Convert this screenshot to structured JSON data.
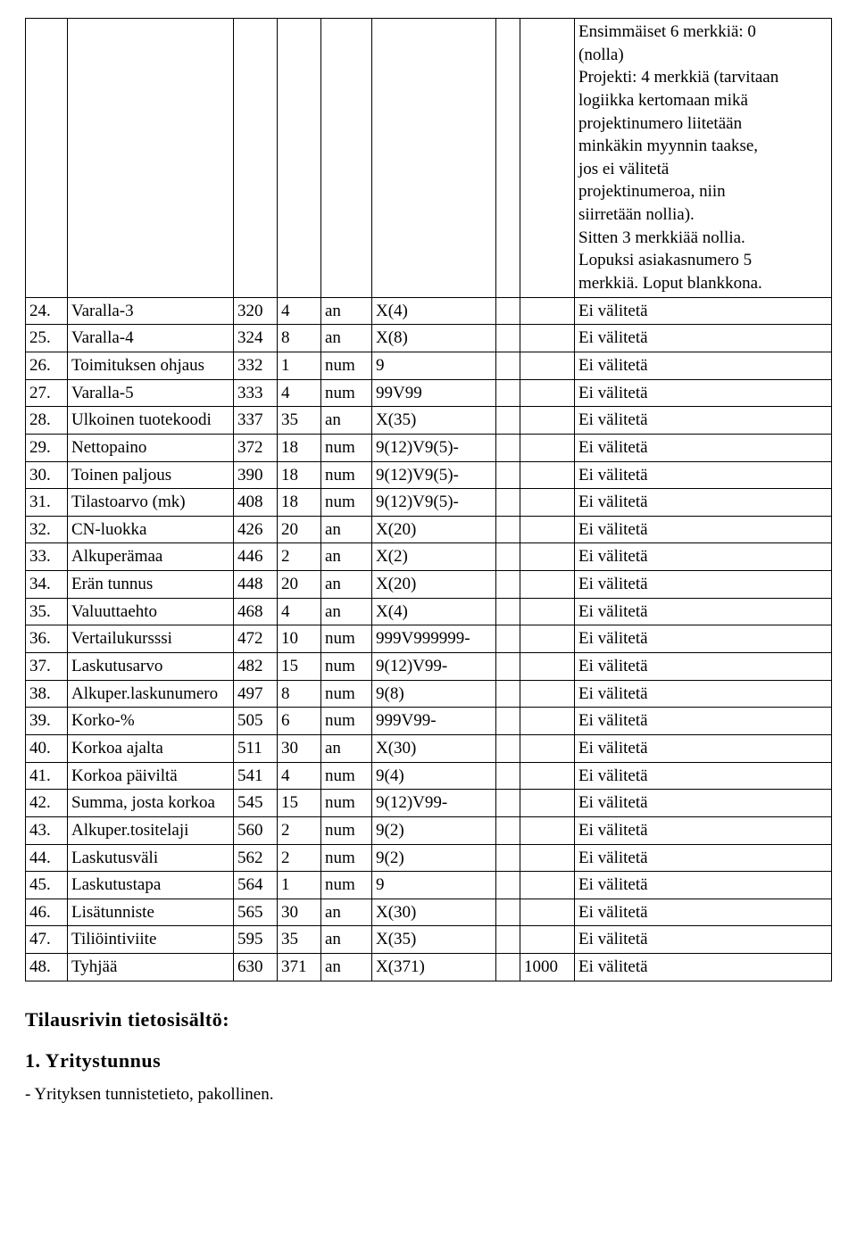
{
  "top_desc": [
    "Ensimmäiset 6 merkkiä: 0",
    "(nolla)",
    "Projekti: 4 merkkiä (tarvitaan",
    "logiikka kertomaan mikä",
    "projektinumero liitetään",
    "minkäkin myynnin taakse,",
    "jos ei välitetä",
    "projektinumeroa, niin",
    "siirretään nollia).",
    "Sitten 3 merkkiää nollia.",
    "Lopuksi asiakasnumero 5",
    "merkkiä. Loput blankkona."
  ],
  "rows": [
    {
      "n": "24.",
      "name": "Varalla-3",
      "pos": "320",
      "len": "4",
      "type": "an",
      "fmt": "X(4)",
      "b1": "",
      "b2": "",
      "desc": "Ei välitetä"
    },
    {
      "n": "25.",
      "name": "Varalla-4",
      "pos": "324",
      "len": "8",
      "type": "an",
      "fmt": "X(8)",
      "b1": "",
      "b2": "",
      "desc": "Ei välitetä"
    },
    {
      "n": "26.",
      "name": "Toimituksen ohjaus",
      "pos": "332",
      "len": "1",
      "type": "num",
      "fmt": "9",
      "b1": "",
      "b2": "",
      "desc": "Ei välitetä"
    },
    {
      "n": "27.",
      "name": "Varalla-5",
      "pos": "333",
      "len": "4",
      "type": "num",
      "fmt": "99V99",
      "b1": "",
      "b2": "",
      "desc": "Ei välitetä"
    },
    {
      "n": "28.",
      "name": "Ulkoinen tuotekoodi",
      "pos": "337",
      "len": "35",
      "type": "an",
      "fmt": "X(35)",
      "b1": "",
      "b2": "",
      "desc": "Ei välitetä"
    },
    {
      "n": "29.",
      "name": "Nettopaino",
      "pos": "372",
      "len": "18",
      "type": "num",
      "fmt": "9(12)V9(5)-",
      "b1": "",
      "b2": "",
      "desc": "Ei välitetä"
    },
    {
      "n": "30.",
      "name": "Toinen paljous",
      "pos": "390",
      "len": "18",
      "type": "num",
      "fmt": "9(12)V9(5)-",
      "b1": "",
      "b2": "",
      "desc": "Ei välitetä"
    },
    {
      "n": "31.",
      "name": "Tilastoarvo (mk)",
      "pos": "408",
      "len": "18",
      "type": "num",
      "fmt": "9(12)V9(5)-",
      "b1": "",
      "b2": "",
      "desc": "Ei välitetä"
    },
    {
      "n": "32.",
      "name": "CN-luokka",
      "pos": "426",
      "len": "20",
      "type": "an",
      "fmt": "X(20)",
      "b1": "",
      "b2": "",
      "desc": "Ei välitetä"
    },
    {
      "n": "33.",
      "name": "Alkuperämaa",
      "pos": "446",
      "len": "2",
      "type": "an",
      "fmt": "X(2)",
      "b1": "",
      "b2": "",
      "desc": "Ei välitetä"
    },
    {
      "n": "34.",
      "name": "Erän tunnus",
      "pos": "448",
      "len": "20",
      "type": "an",
      "fmt": "X(20)",
      "b1": "",
      "b2": "",
      "desc": "Ei välitetä"
    },
    {
      "n": "35.",
      "name": "Valuuttaehto",
      "pos": "468",
      "len": "4",
      "type": "an",
      "fmt": "X(4)",
      "b1": "",
      "b2": "",
      "desc": "Ei välitetä"
    },
    {
      "n": "36.",
      "name": "Vertailukursssi",
      "pos": "472",
      "len": "10",
      "type": "num",
      "fmt": "999V999999-",
      "b1": "",
      "b2": "",
      "desc": "Ei välitetä"
    },
    {
      "n": "37.",
      "name": "Laskutusarvo",
      "pos": "482",
      "len": "15",
      "type": "num",
      "fmt": "9(12)V99-",
      "b1": "",
      "b2": "",
      "desc": "Ei välitetä"
    },
    {
      "n": "38.",
      "name": "Alkuper.laskunumero",
      "pos": "497",
      "len": "8",
      "type": "num",
      "fmt": "9(8)",
      "b1": "",
      "b2": "",
      "desc": "Ei välitetä"
    },
    {
      "n": "39.",
      "name": "Korko-%",
      "pos": "505",
      "len": "6",
      "type": "num",
      "fmt": "999V99-",
      "b1": "",
      "b2": "",
      "desc": "Ei välitetä"
    },
    {
      "n": "40.",
      "name": "Korkoa ajalta",
      "pos": "511",
      "len": "30",
      "type": "an",
      "fmt": "X(30)",
      "b1": "",
      "b2": "",
      "desc": "Ei välitetä"
    },
    {
      "n": "41.",
      "name": "Korkoa päiviltä",
      "pos": "541",
      "len": "4",
      "type": "num",
      "fmt": "9(4)",
      "b1": "",
      "b2": "",
      "desc": "Ei välitetä"
    },
    {
      "n": "42.",
      "name": "Summa, josta korkoa",
      "pos": "545",
      "len": "15",
      "type": "num",
      "fmt": "9(12)V99-",
      "b1": "",
      "b2": "",
      "desc": "Ei välitetä"
    },
    {
      "n": "43.",
      "name": "Alkuper.tositelaji",
      "pos": "560",
      "len": "2",
      "type": "num",
      "fmt": "9(2)",
      "b1": "",
      "b2": "",
      "desc": "Ei välitetä"
    },
    {
      "n": "44.",
      "name": "Laskutusväli",
      "pos": "562",
      "len": "2",
      "type": "num",
      "fmt": "9(2)",
      "b1": "",
      "b2": "",
      "desc": "Ei välitetä"
    },
    {
      "n": "45.",
      "name": "Laskutustapa",
      "pos": "564",
      "len": "1",
      "type": "num",
      "fmt": "9",
      "b1": "",
      "b2": "",
      "desc": "Ei välitetä"
    },
    {
      "n": "46.",
      "name": "Lisätunniste",
      "pos": "565",
      "len": "30",
      "type": "an",
      "fmt": "X(30)",
      "b1": "",
      "b2": "",
      "desc": "Ei välitetä"
    },
    {
      "n": "47.",
      "name": "Tiliöintiviite",
      "pos": "595",
      "len": "35",
      "type": "an",
      "fmt": "X(35)",
      "b1": "",
      "b2": "",
      "desc": "Ei välitetä"
    },
    {
      "n": "48.",
      "name": "Tyhjää",
      "pos": "630",
      "len": "371",
      "type": "an",
      "fmt": "X(371)",
      "b1": "",
      "b2": "1000",
      "desc": "Ei välitetä"
    }
  ],
  "section_heading": "Tilausrivin tietosisältö:",
  "sub_heading": "1. Yritystunnus",
  "note": "- Yrityksen tunnistetieto, pakollinen."
}
